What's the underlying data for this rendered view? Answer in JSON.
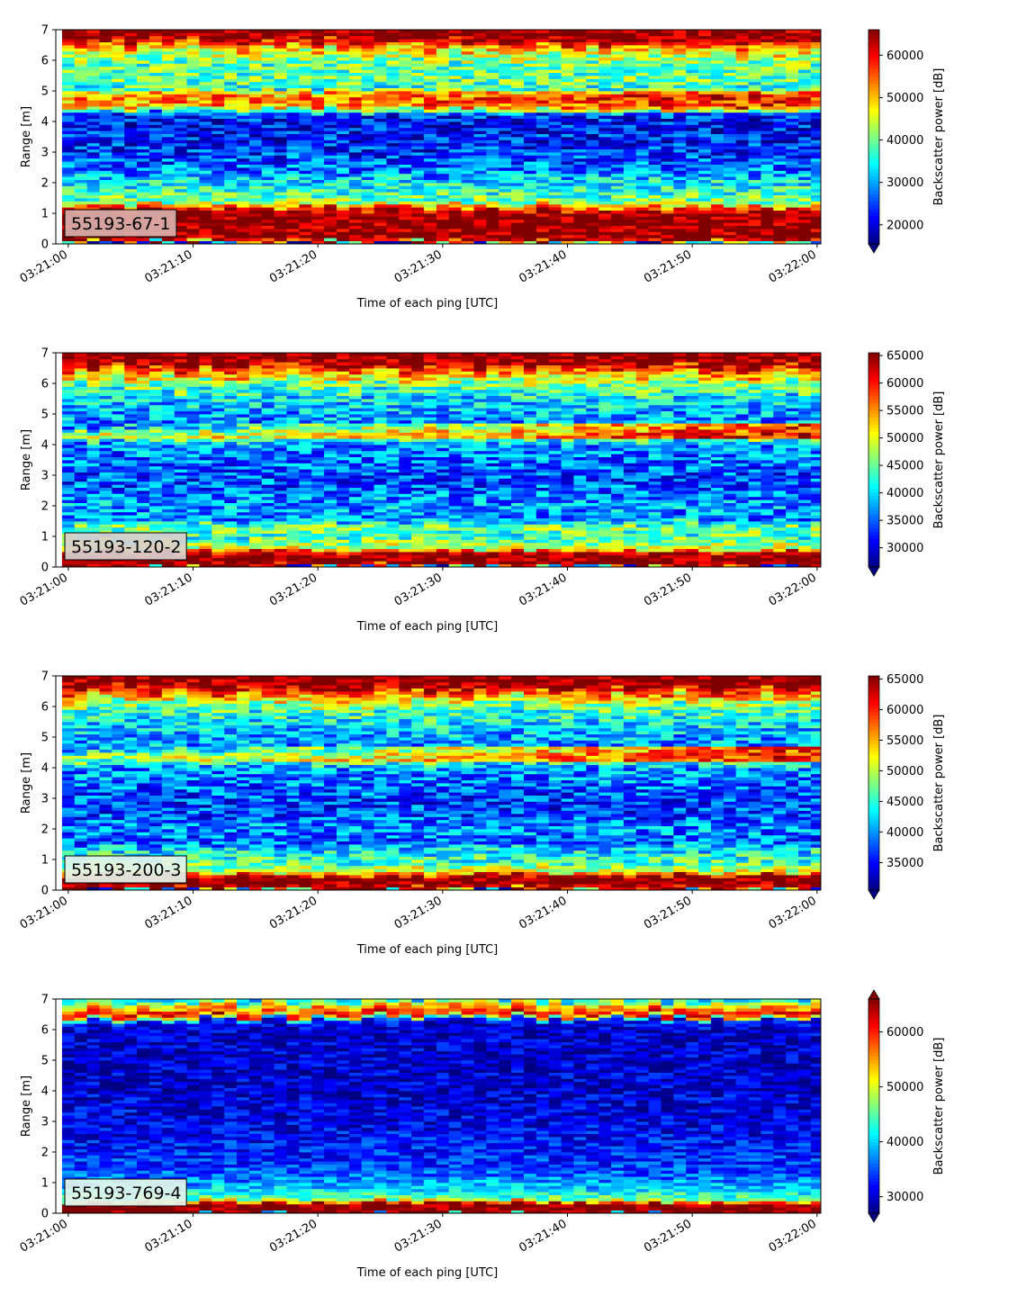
{
  "figure": {
    "xlabel": "Time of each ping [UTC]",
    "ylabel": "Range [m]",
    "colorbar_label": "Backscatter power [dB]"
  },
  "chart_data": [
    {
      "type": "heatmap",
      "label": "55193-67-1",
      "xlabel": "Time of each ping [UTC]",
      "ylabel": "Range [m]",
      "x_ticks": [
        "03:21:00",
        "03:21:10",
        "03:21:20",
        "03:21:30",
        "03:21:40",
        "03:21:50",
        "03:22:00"
      ],
      "xlim_seconds": [
        -1,
        60.3
      ],
      "y_ticks": [
        "0",
        "1",
        "2",
        "3",
        "4",
        "5",
        "6",
        "7"
      ],
      "ylim": [
        0,
        7
      ],
      "colorbar": {
        "label": "Backscatter power [dB]",
        "min": 15500,
        "max": 66000,
        "ticks": [
          "20000",
          "30000",
          "40000",
          "50000",
          "60000"
        ],
        "extend": "min"
      },
      "profile": [
        [
          0.0,
          15500
        ],
        [
          0.15,
          66000
        ],
        [
          1.05,
          66000
        ],
        [
          1.2,
          55000
        ],
        [
          1.35,
          42000
        ],
        [
          1.6,
          38000
        ],
        [
          2.0,
          34000
        ],
        [
          2.4,
          28000
        ],
        [
          3.0,
          24000
        ],
        [
          3.5,
          23000
        ],
        [
          4.0,
          22000
        ],
        [
          4.25,
          24000
        ],
        [
          4.5,
          50000
        ],
        [
          4.85,
          52000
        ],
        [
          5.1,
          36000
        ],
        [
          5.4,
          40000
        ],
        [
          5.8,
          38000
        ],
        [
          6.2,
          44000
        ],
        [
          6.5,
          53000
        ],
        [
          6.7,
          66000
        ],
        [
          7.0,
          66000
        ]
      ]
    },
    {
      "type": "heatmap",
      "label": "55193-120-2",
      "xlabel": "Time of each ping [UTC]",
      "ylabel": "Range [m]",
      "x_ticks": [
        "03:21:00",
        "03:21:10",
        "03:21:20",
        "03:21:30",
        "03:21:40",
        "03:21:50",
        "03:22:00"
      ],
      "xlim_seconds": [
        -1,
        60.3
      ],
      "y_ticks": [
        "0",
        "1",
        "2",
        "3",
        "4",
        "5",
        "6",
        "7"
      ],
      "ylim": [
        0,
        7
      ],
      "colorbar": {
        "label": "Backscatter power [dB]",
        "min": 26500,
        "max": 65500,
        "ticks": [
          "30000",
          "35000",
          "40000",
          "45000",
          "50000",
          "55000",
          "60000",
          "65000"
        ],
        "extend": "min"
      },
      "profile": [
        [
          0.0,
          26500
        ],
        [
          0.1,
          65500
        ],
        [
          0.45,
          65500
        ],
        [
          0.6,
          50000
        ],
        [
          1.0,
          43000
        ],
        [
          1.3,
          46000
        ],
        [
          1.6,
          36000
        ],
        [
          2.0,
          38000
        ],
        [
          2.5,
          35000
        ],
        [
          3.0,
          34000
        ],
        [
          3.5,
          36000
        ],
        [
          4.0,
          37000
        ],
        [
          4.3,
          48000
        ],
        [
          4.6,
          36000
        ],
        [
          5.0,
          38000
        ],
        [
          5.5,
          40000
        ],
        [
          6.0,
          46000
        ],
        [
          6.4,
          56000
        ],
        [
          6.7,
          65500
        ],
        [
          7.0,
          65500
        ]
      ]
    },
    {
      "type": "heatmap",
      "label": "55193-200-3",
      "xlabel": "Time of each ping [UTC]",
      "ylabel": "Range [m]",
      "x_ticks": [
        "03:21:00",
        "03:21:10",
        "03:21:20",
        "03:21:30",
        "03:21:40",
        "03:21:50",
        "03:22:00"
      ],
      "xlim_seconds": [
        -1,
        60.3
      ],
      "y_ticks": [
        "0",
        "1",
        "2",
        "3",
        "4",
        "5",
        "6",
        "7"
      ],
      "ylim": [
        0,
        7
      ],
      "colorbar": {
        "label": "Backscatter power [dB]",
        "min": 30500,
        "max": 65500,
        "ticks": [
          "35000",
          "40000",
          "45000",
          "50000",
          "55000",
          "60000",
          "65000"
        ],
        "extend": "min"
      },
      "profile": [
        [
          0.0,
          30500
        ],
        [
          0.1,
          65500
        ],
        [
          0.45,
          65500
        ],
        [
          0.6,
          52000
        ],
        [
          0.9,
          46000
        ],
        [
          1.3,
          43000
        ],
        [
          1.6,
          38000
        ],
        [
          2.0,
          40000
        ],
        [
          2.5,
          37000
        ],
        [
          3.0,
          37000
        ],
        [
          3.5,
          39000
        ],
        [
          4.0,
          40000
        ],
        [
          4.3,
          49000
        ],
        [
          4.6,
          40000
        ],
        [
          5.0,
          41000
        ],
        [
          5.5,
          43000
        ],
        [
          6.0,
          47000
        ],
        [
          6.4,
          56000
        ],
        [
          6.7,
          65500
        ],
        [
          7.0,
          65500
        ]
      ]
    },
    {
      "type": "heatmap",
      "label": "55193-769-4",
      "xlabel": "Time of each ping [UTC]",
      "ylabel": "Range [m]",
      "x_ticks": [
        "03:21:00",
        "03:21:10",
        "03:21:20",
        "03:21:30",
        "03:21:40",
        "03:21:50",
        "03:22:00"
      ],
      "xlim_seconds": [
        -1,
        60.3
      ],
      "y_ticks": [
        "0",
        "1",
        "2",
        "3",
        "4",
        "5",
        "6",
        "7"
      ],
      "ylim": [
        0,
        7
      ],
      "colorbar": {
        "label": "Backscatter power [dB]",
        "min": 27000,
        "max": 66000,
        "ticks": [
          "30000",
          "40000",
          "50000",
          "60000"
        ],
        "extend": "both"
      },
      "profile": [
        [
          0.0,
          66000
        ],
        [
          0.1,
          66000
        ],
        [
          0.3,
          66000
        ],
        [
          0.45,
          46000
        ],
        [
          0.8,
          40000
        ],
        [
          1.2,
          36000
        ],
        [
          1.6,
          34000
        ],
        [
          2.0,
          33000
        ],
        [
          3.0,
          31000
        ],
        [
          4.0,
          30500
        ],
        [
          5.0,
          30000
        ],
        [
          6.0,
          30000
        ],
        [
          6.3,
          32000
        ],
        [
          6.5,
          62000
        ],
        [
          6.8,
          52000
        ],
        [
          7.0,
          40000
        ]
      ]
    }
  ]
}
